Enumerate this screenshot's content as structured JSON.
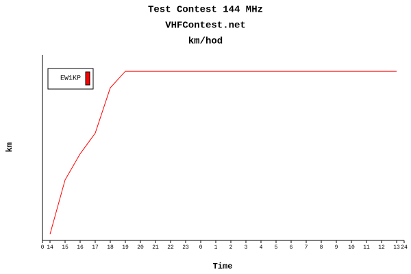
{
  "chart_data": {
    "type": "line",
    "title": "Test Contest 144 MHz",
    "subtitle": "VHFContest.net",
    "subtitle2": "km/hod",
    "ylabel": "km",
    "xlabel": "Time",
    "categories": [
      "14",
      "15",
      "16",
      "17",
      "18",
      "19",
      "20",
      "21",
      "22",
      "23",
      "0",
      "1",
      "2",
      "3",
      "4",
      "5",
      "6",
      "7",
      "8",
      "9",
      "10",
      "11",
      "12",
      "13"
    ],
    "xlim": [
      0,
      24
    ],
    "xticks": [
      0,
      24
    ],
    "ylim": [
      0,
      270
    ],
    "series": [
      {
        "name": "EW1KP",
        "color": "#ff0000",
        "values": [
          9,
          88,
          126,
          156,
          222,
          246,
          246,
          246,
          246,
          246,
          246,
          246,
          246,
          246,
          246,
          246,
          246,
          246,
          246,
          246,
          246,
          246,
          246,
          246
        ]
      }
    ],
    "legend": "upper left"
  }
}
